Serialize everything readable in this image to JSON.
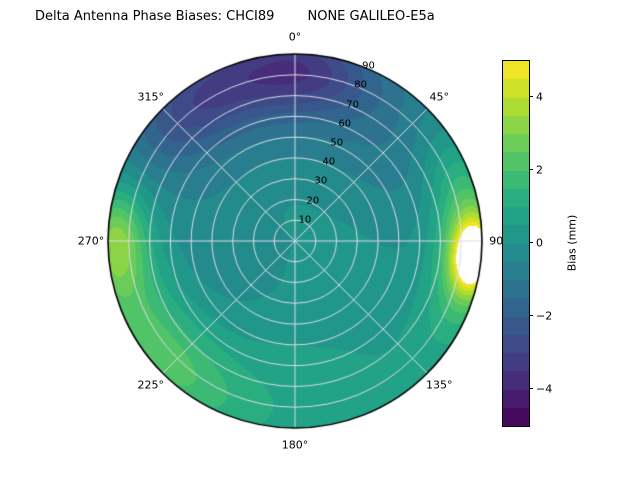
{
  "chart_data": {
    "type": "heatmap",
    "projection": "polar",
    "title": "Delta Antenna Phase Biases: CHCI89        NONE GALILEO-E5a",
    "angular_tick_degrees": [
      0,
      45,
      90,
      135,
      180,
      225,
      270,
      315
    ],
    "angular_tick_labels": [
      "0°",
      "45°",
      "90°",
      "135°",
      "180°",
      "225°",
      "270°",
      "315°"
    ],
    "radial_tick_values": [
      10,
      20,
      30,
      40,
      50,
      60,
      70,
      80,
      90
    ],
    "radial_tick_labels": [
      "10",
      "20",
      "30",
      "40",
      "50",
      "60",
      "70",
      "80",
      "90"
    ],
    "radial_max": 90,
    "radial_label_azimuth_deg": 22.5,
    "grid_on": true,
    "grid_color": "#dcdce8",
    "outline_color": "#000000",
    "background_color": "#ffffff",
    "contour_step": 0.5,
    "over_color": "#ffffff",
    "colorbar": {
      "label": "Bias (mm)",
      "tick_values": [
        4,
        2,
        0,
        -2,
        -4
      ],
      "tick_labels": [
        "4",
        "2",
        "0",
        "−2",
        "−4"
      ],
      "vmin": -5,
      "vmax": 5,
      "position": "right"
    },
    "colormap": {
      "name": "viridis",
      "stops": [
        "#440154",
        "#482475",
        "#414487",
        "#355f8d",
        "#2a788e",
        "#21918c",
        "#22a884",
        "#44bf70",
        "#7ad151",
        "#bddf26",
        "#fde725"
      ]
    },
    "field": {
      "units": "mm",
      "description": "Phase bias (mm) vs azimuth (deg, 0 at top, clockwise) and radial coordinate 0-90",
      "base": 0.2,
      "bumps": [
        {
          "az": 95,
          "az_sigma": 8,
          "r": 86,
          "r_sigma": 7,
          "amp": 5.0
        },
        {
          "az": 88,
          "az_sigma": 22,
          "r": 84,
          "r_sigma": 12,
          "amp": 3.0
        },
        {
          "az": 270,
          "az_sigma": 12,
          "r": 86,
          "r_sigma": 10,
          "amp": 2.6
        },
        {
          "az": 255,
          "az_sigma": 28,
          "r": 82,
          "r_sigma": 16,
          "amp": 0.9
        },
        {
          "az": 228,
          "az_sigma": 20,
          "r": 84,
          "r_sigma": 14,
          "amp": 1.2
        },
        {
          "az": 195,
          "az_sigma": 40,
          "r": 72,
          "r_sigma": 30,
          "amp": 0.7
        },
        {
          "az": 325,
          "az_sigma": 20,
          "r": 82,
          "r_sigma": 16,
          "amp": -2.0
        },
        {
          "az": 2,
          "az_sigma": 16,
          "r": 82,
          "r_sigma": 14,
          "amp": -2.0
        },
        {
          "az": 345,
          "az_sigma": 45,
          "r": 78,
          "r_sigma": 26,
          "amp": -1.2
        },
        {
          "az": 45,
          "az_sigma": 35,
          "r": 70,
          "r_sigma": 28,
          "amp": -0.8
        },
        {
          "az": 250,
          "az_sigma": 55,
          "r": 32,
          "r_sigma": 26,
          "amp": -0.6
        }
      ]
    }
  }
}
